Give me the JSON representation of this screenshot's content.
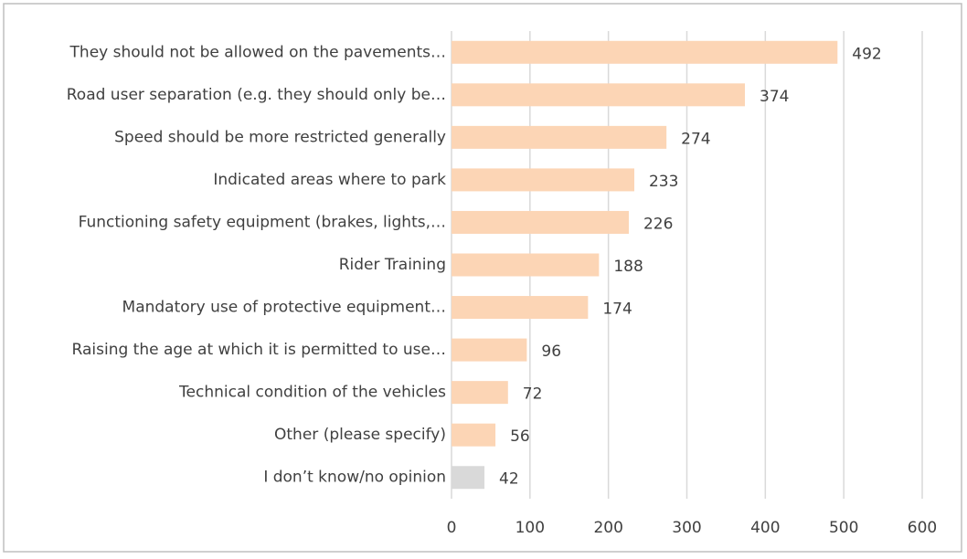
{
  "chart_data": {
    "type": "bar",
    "orientation": "horizontal",
    "categories": [
      "They should not be allowed on the pavements…",
      "Road user separation (e.g. they should only be…",
      "Speed should be more restricted generally",
      "Indicated areas where to park",
      "Functioning safety equipment (brakes, lights,…",
      "Rider Training",
      "Mandatory use of protective equipment…",
      "Raising the age at which it is permitted to use…",
      "Technical condition of the vehicles",
      "Other (please specify)",
      "I don’t know/no opinion"
    ],
    "values": [
      492,
      374,
      274,
      233,
      226,
      188,
      174,
      96,
      72,
      56,
      42
    ],
    "colors": [
      "#fcd5b5",
      "#fcd5b5",
      "#fcd5b5",
      "#fcd5b5",
      "#fcd5b5",
      "#fcd5b5",
      "#fcd5b5",
      "#fcd5b5",
      "#fcd5b5",
      "#fcd5b5",
      "#d9d9d9"
    ],
    "xlim": [
      0,
      600
    ],
    "xticks": [
      0,
      100,
      200,
      300,
      400,
      500,
      600
    ],
    "grid": true,
    "data_labels": true
  }
}
